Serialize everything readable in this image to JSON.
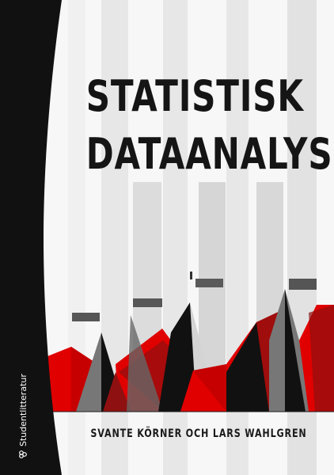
{
  "cover": {
    "title_line_1": "STATISTISK",
    "title_line_2": "DATAANALYS",
    "authors": "SVANTE KÖRNER OCH LARS WAHLGREN",
    "publisher": "Studentlitteratur",
    "publisher_icon": "publisher-logo-icon",
    "colors": {
      "spine": "#111111",
      "red": "#e00000",
      "dark_red": "#8f1010",
      "dark_gray": "#575757",
      "mid_gray": "#777777",
      "light_gray": "#dadada",
      "background": "#f7f7f7",
      "text": "#151515"
    }
  }
}
